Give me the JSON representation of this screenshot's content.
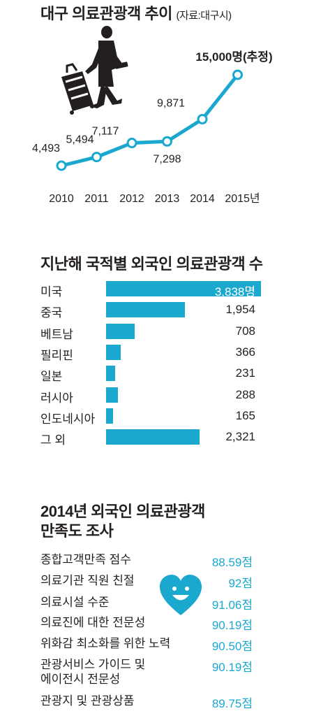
{
  "colors": {
    "accent": "#1aa8cf",
    "text": "#231f20",
    "bar_label_inside": "#ffffff"
  },
  "section1": {
    "title": "대구 의료관광객 추이",
    "source": "(자료:대구시)",
    "illustration": "traveler-with-suitcase"
  },
  "section2": {
    "title": "지난해 국적별 외국인 의료관광객 수"
  },
  "section3": {
    "title_line1": "2014년 외국인 의료관광객",
    "title_line2": "만족도 조사",
    "icon": "smiling-heart-icon",
    "items": [
      {
        "label": "종합고객만족 점수",
        "value": "88.59",
        "unit": "점"
      },
      {
        "label": "의료기관 직원 친절",
        "value": "92",
        "unit": "점"
      },
      {
        "label": "의료시설 수준",
        "value": "91.06",
        "unit": "점"
      },
      {
        "label": "의료진에 대한 전문성",
        "value": "90.19",
        "unit": "점"
      },
      {
        "label": "위화감 최소화를 위한 노력",
        "value": "90.50",
        "unit": "점"
      },
      {
        "label_line1": "관광서비스 가이드 및",
        "label_line2": "에이전시 전문성",
        "value": "90.19",
        "unit": "점"
      },
      {
        "label": "관광지 및 관광상품",
        "value": "89.75",
        "unit": "점"
      }
    ]
  },
  "chart_data": [
    {
      "type": "line",
      "title": "대구 의료관광객 추이",
      "subtitle": "(자료:대구시)",
      "x": [
        "2010",
        "2011",
        "2012",
        "2013",
        "2014",
        "2015년"
      ],
      "series": [
        {
          "values": [
            4493,
            5494,
            7117,
            7298,
            9871,
            15000
          ]
        }
      ],
      "data_labels": [
        "4,493",
        "5,494",
        "7,117",
        "7,298",
        "9,871",
        "15,000명(추정)"
      ],
      "ylim": [
        0,
        15000
      ],
      "grid": false
    },
    {
      "type": "bar",
      "orientation": "horizontal",
      "title": "지난해 국적별 외국인 의료관광객 수",
      "categories": [
        "미국",
        "중국",
        "베트남",
        "필리핀",
        "일본",
        "러시아",
        "인도네시아",
        "그 외"
      ],
      "values": [
        3838,
        1954,
        708,
        366,
        231,
        288,
        165,
        2321
      ],
      "data_labels": [
        "3,838명",
        "1,954",
        "708",
        "366",
        "231",
        "288",
        "165",
        "2,321"
      ],
      "grid": false
    }
  ]
}
